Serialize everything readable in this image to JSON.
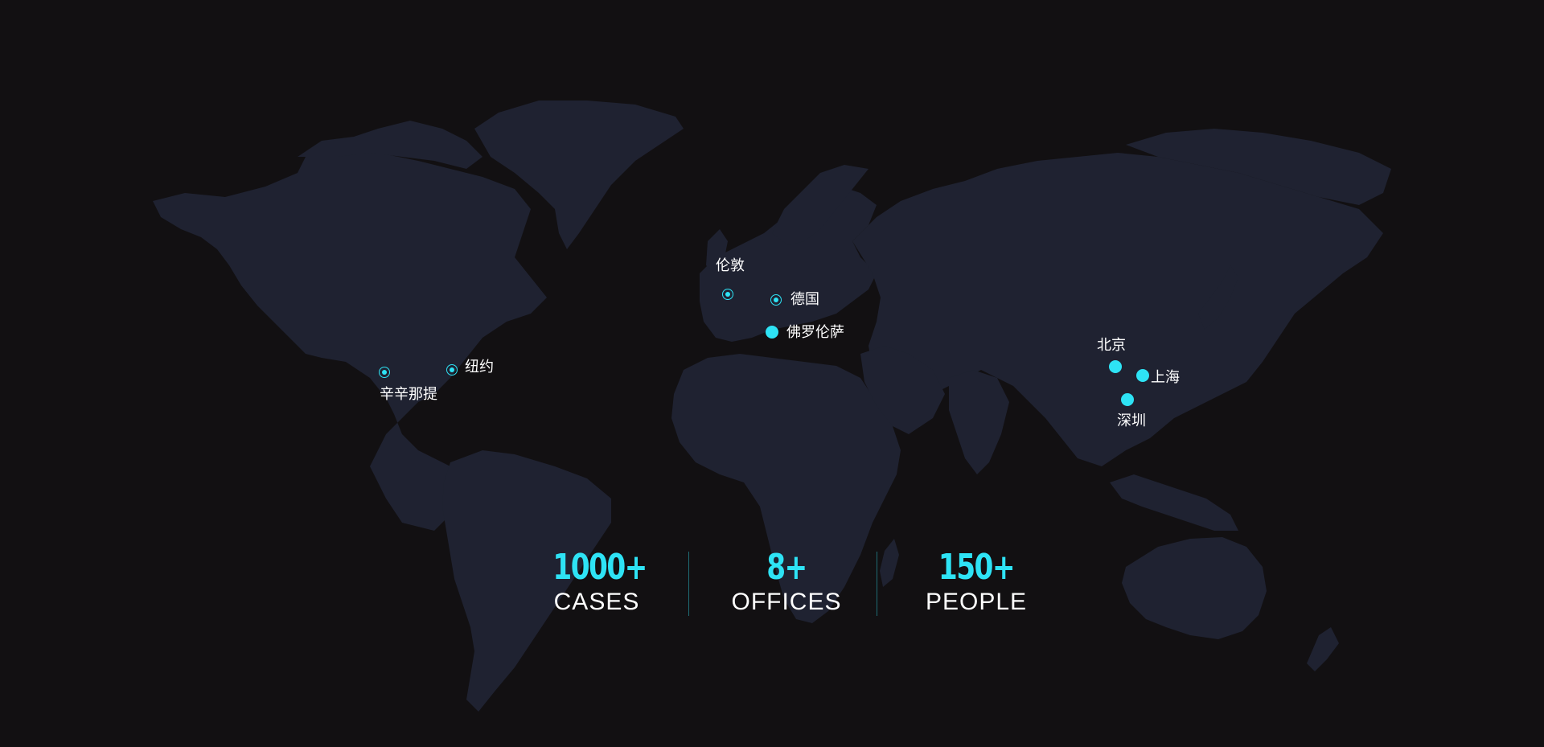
{
  "colors": {
    "background": "#121012",
    "land": "#1f2231",
    "accent": "#2ee3f5",
    "text": "#ffffff",
    "divider": "#1f6b74"
  },
  "cities": [
    {
      "name": "伦敦",
      "marker": "ring"
    },
    {
      "name": "德国",
      "marker": "ring"
    },
    {
      "name": "佛罗伦萨",
      "marker": "solid"
    },
    {
      "name": "纽约",
      "marker": "ring"
    },
    {
      "name": "辛辛那提",
      "marker": "ring"
    },
    {
      "name": "北京",
      "marker": "solid"
    },
    {
      "name": "上海",
      "marker": "solid"
    },
    {
      "name": "深圳",
      "marker": "solid"
    }
  ],
  "stats": [
    {
      "value": "1000+",
      "label": "CASES"
    },
    {
      "value": "8+",
      "label": "OFFICES"
    },
    {
      "value": "150+",
      "label": "PEOPLE"
    }
  ]
}
